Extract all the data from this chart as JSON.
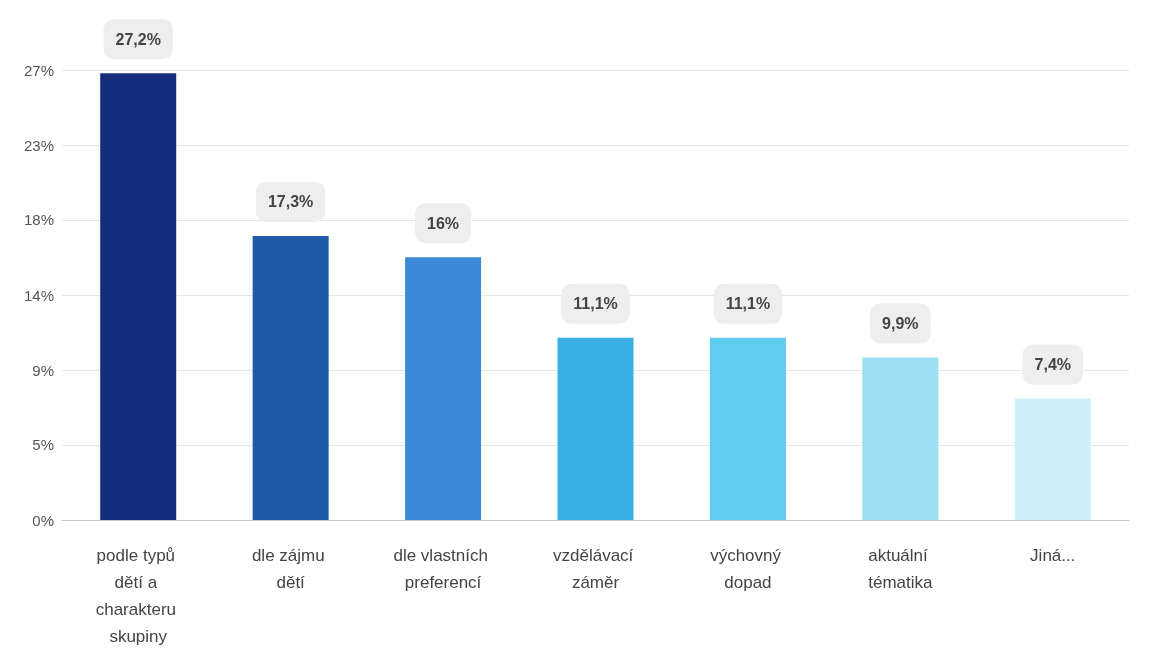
{
  "chart_data": {
    "type": "bar",
    "categories": [
      "podle typů dětí a charakteru skupiny",
      "dle zájmu dětí",
      "dle vlastních preferencí",
      "vzdělávací záměr",
      "výchovný dopad",
      "aktuální tématika",
      "Jiná..."
    ],
    "values": [
      27.2,
      17.3,
      16,
      11.1,
      11.1,
      9.9,
      7.4
    ],
    "value_labels": [
      "27,2%",
      "17,3%",
      "16%",
      "11,1%",
      "11,1%",
      "9,9%",
      "7,4%"
    ],
    "colors": [
      "#142d7c",
      "#1f5aa8",
      "#3a8ad8",
      "#3aaee6",
      "#5ecdf0",
      "#9ddff3",
      "#cdf0f9"
    ],
    "ylim": [
      0,
      27.4
    ],
    "yticks": [
      {
        "value": 0,
        "label": "0%"
      },
      {
        "value": 4.57,
        "label": "5%"
      },
      {
        "value": 9.13,
        "label": "9%"
      },
      {
        "value": 13.7,
        "label": "14%"
      },
      {
        "value": 18.27,
        "label": "18%"
      },
      {
        "value": 22.83,
        "label": "23%"
      },
      {
        "value": 27.4,
        "label": "27%"
      }
    ],
    "grid": "y"
  }
}
